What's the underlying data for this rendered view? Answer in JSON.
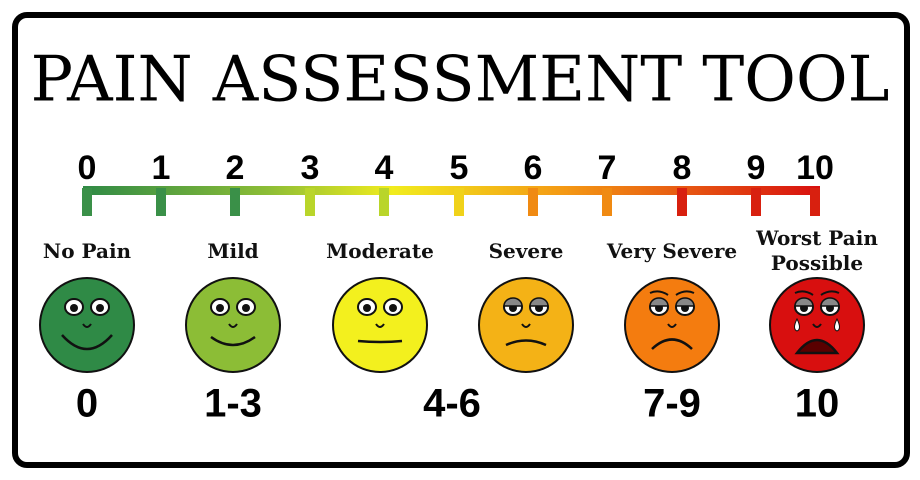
{
  "title": "PAIN ASSESSMENT TOOL",
  "scale": {
    "ticks": [
      0,
      1,
      2,
      3,
      4,
      5,
      6,
      7,
      8,
      9,
      10
    ]
  },
  "faces": [
    {
      "label": "No Pain",
      "color": "#2f8a46"
    },
    {
      "label": "Mild",
      "color": "#8cbd36"
    },
    {
      "label": "Moderate",
      "color": "#f3f01e"
    },
    {
      "label": "Severe",
      "color": "#f4b216"
    },
    {
      "label": "Very Severe",
      "color": "#f47c0f"
    },
    {
      "label": "Worst Pain Possible",
      "color": "#d80f0f"
    }
  ],
  "ranges": [
    "0",
    "1-3",
    "4-6",
    "7-9",
    "10"
  ]
}
